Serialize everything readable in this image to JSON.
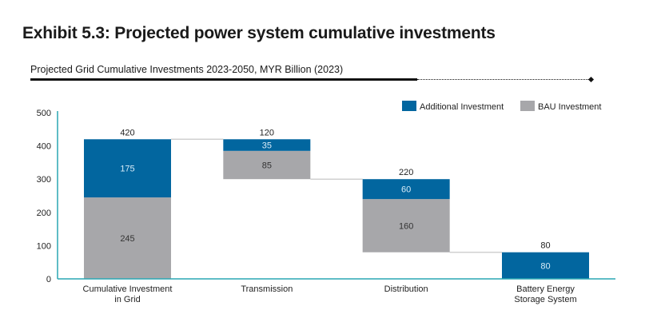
{
  "header": {
    "title": "Exhibit 5.3: Projected power system cumulative investments",
    "subtitle": "Projected Grid Cumulative Investments 2023-2050, MYR Billion (2023)"
  },
  "colors": {
    "additional": "#02669f",
    "bau": "#a7a7aa",
    "axis": "#2aa7b3",
    "connector": "#d0d0d0"
  },
  "chart_data": {
    "type": "bar",
    "subtype": "waterfall-stacked",
    "title": "Projected Grid Cumulative Investments 2023-2050, MYR Billion (2023)",
    "xlabel": "",
    "ylabel": "",
    "ylim": [
      0,
      500
    ],
    "yticks": [
      0,
      100,
      200,
      300,
      400,
      500
    ],
    "grid": false,
    "legend_position": "top-right",
    "legend": [
      "Additional Investment",
      "BAU Investment"
    ],
    "categories": [
      {
        "label_lines": [
          "Cumulative Investment",
          "in Grid"
        ],
        "base": 0,
        "bau": 245,
        "additional": 175,
        "total": 420
      },
      {
        "label_lines": [
          "Transmission"
        ],
        "base": 300,
        "bau": 85,
        "additional": 35,
        "total": 120
      },
      {
        "label_lines": [
          "Distribution"
        ],
        "base": 80,
        "bau": 160,
        "additional": 60,
        "total": 220
      },
      {
        "label_lines": [
          "Battery Energy",
          "Storage System"
        ],
        "base": 0,
        "bau": 0,
        "additional": 80,
        "total": 80
      }
    ]
  }
}
